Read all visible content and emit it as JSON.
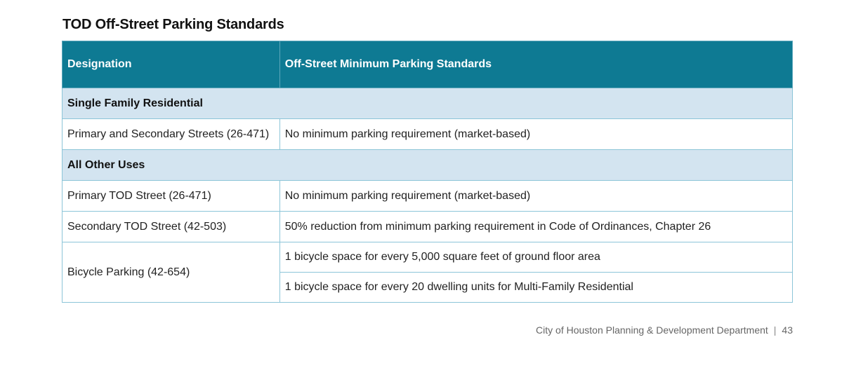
{
  "title": "TOD Off-Street Parking Standards",
  "table": {
    "headers": [
      "Designation",
      "Off-Street Minimum Parking Standards"
    ],
    "sections": [
      {
        "label": "Single Family Residential",
        "rows": [
          {
            "designation": "Primary and Secondary Streets (26-471)",
            "standards": [
              "No minimum parking requirement (market-based)"
            ]
          }
        ]
      },
      {
        "label": "All Other Uses",
        "rows": [
          {
            "designation": "Primary TOD Street (26-471)",
            "standards": [
              "No minimum parking requirement (market-based)"
            ]
          },
          {
            "designation": "Secondary TOD Street (42-503)",
            "standards": [
              "50% reduction from minimum parking requirement in Code of Ordinances, Chapter 26"
            ]
          },
          {
            "designation": "Bicycle Parking (42-654)",
            "standards": [
              "1 bicycle space for every 5,000 square feet of ground floor area",
              "1 bicycle space for every 20 dwelling units for Multi-Family Residential"
            ]
          }
        ]
      }
    ]
  },
  "footer": {
    "department": "City of Houston Planning & Development Department",
    "separator": "|",
    "page_number": "43"
  },
  "colors": {
    "header_bg": "#0e7a93",
    "section_bg": "#d3e4f0",
    "border": "#8cc5d8"
  }
}
